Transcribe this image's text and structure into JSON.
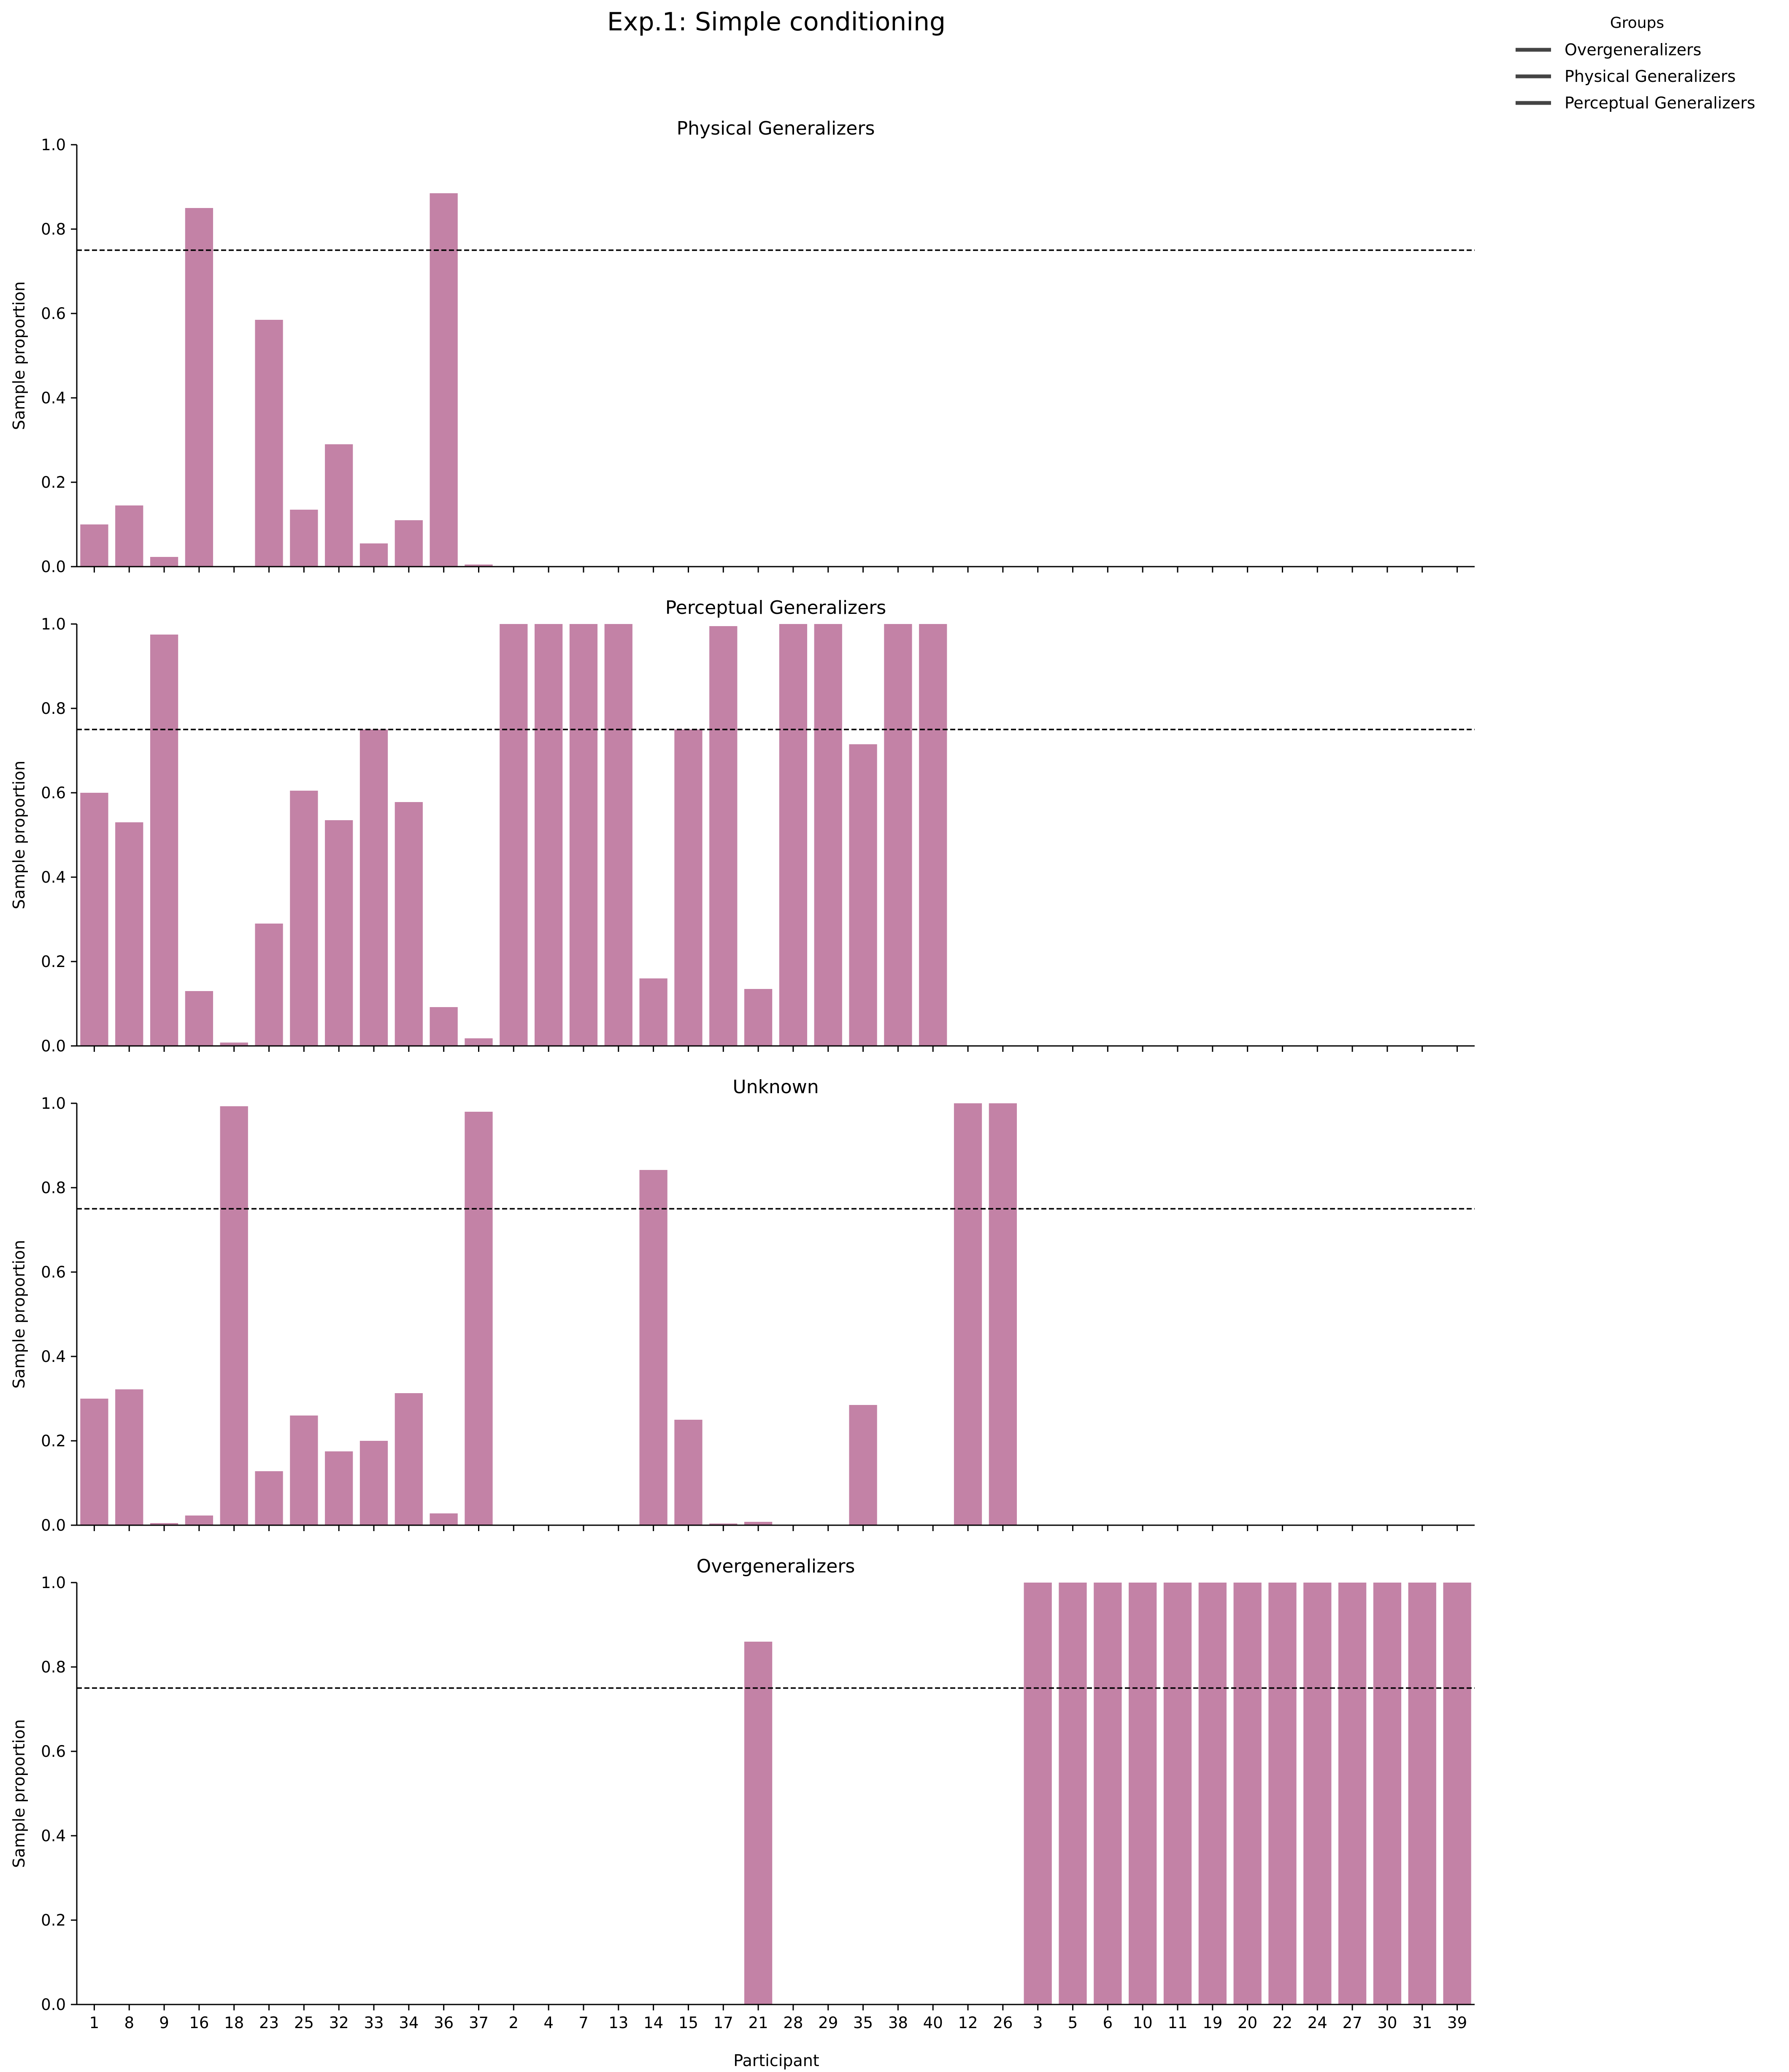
{
  "title": "Exp.1: Simple conditioning",
  "legend": {
    "title": "Groups",
    "placement": "top-right",
    "entries": [
      {
        "label": "Overgeneralizers",
        "color": "#444444"
      },
      {
        "label": "Physical Generalizers",
        "color": "#444444"
      },
      {
        "label": "Perceptual Generalizers",
        "color": "#444444"
      }
    ]
  },
  "colors": {
    "bar": "#c382a6",
    "threshold": "#000000",
    "axis": "#000000"
  },
  "chart_data": {
    "type": "bar",
    "xlabel": "Participant",
    "ylabel": "Sample proportion",
    "ylim": [
      0,
      1
    ],
    "yticks": [
      "0.0",
      "0.2",
      "0.4",
      "0.6",
      "0.8",
      "1.0"
    ],
    "threshold": 0.75,
    "categories": [
      "1",
      "8",
      "9",
      "16",
      "18",
      "23",
      "25",
      "32",
      "33",
      "34",
      "36",
      "37",
      "2",
      "4",
      "7",
      "13",
      "14",
      "15",
      "17",
      "21",
      "28",
      "29",
      "35",
      "38",
      "40",
      "12",
      "26",
      "3",
      "5",
      "6",
      "10",
      "11",
      "19",
      "20",
      "22",
      "24",
      "27",
      "30",
      "31",
      "39"
    ],
    "panels": [
      {
        "title": "Physical Generalizers",
        "values": [
          0.1,
          0.145,
          0.023,
          0.85,
          0,
          0.585,
          0.135,
          0.29,
          0.055,
          0.11,
          0.885,
          0.005,
          0,
          0,
          0,
          0,
          0,
          0,
          0,
          0,
          0,
          0,
          0,
          0,
          0,
          0,
          0,
          0,
          0,
          0,
          0,
          0,
          0,
          0,
          0,
          0,
          0,
          0,
          0,
          0
        ]
      },
      {
        "title": "Perceptual Generalizers",
        "values": [
          0.6,
          0.53,
          0.975,
          0.13,
          0.008,
          0.29,
          0.605,
          0.535,
          0.75,
          0.578,
          0.092,
          0.018,
          1.0,
          1.0,
          1.0,
          1.0,
          0.16,
          0.75,
          0.995,
          0.135,
          1.0,
          1.0,
          0.715,
          1.0,
          1.0,
          0,
          0,
          0,
          0,
          0,
          0,
          0,
          0,
          0,
          0,
          0,
          0,
          0,
          0,
          0
        ]
      },
      {
        "title": "Unknown",
        "values": [
          0.3,
          0.322,
          0.005,
          0.023,
          0.993,
          0.128,
          0.26,
          0.175,
          0.2,
          0.313,
          0.028,
          0.98,
          0,
          0,
          0,
          0,
          0.842,
          0.25,
          0.004,
          0.008,
          0,
          0,
          0.285,
          0,
          0,
          1.0,
          1.0,
          0,
          0,
          0,
          0,
          0,
          0,
          0,
          0,
          0,
          0,
          0,
          0,
          0
        ]
      },
      {
        "title": "Overgeneralizers",
        "values": [
          0,
          0,
          0,
          0,
          0,
          0,
          0,
          0,
          0,
          0,
          0,
          0,
          0,
          0,
          0,
          0,
          0,
          0,
          0,
          0.86,
          0,
          0,
          0,
          0,
          0,
          0,
          0,
          1.0,
          1.0,
          1.0,
          1.0,
          1.0,
          1.0,
          1.0,
          1.0,
          1.0,
          1.0,
          1.0,
          1.0,
          1.0
        ]
      }
    ]
  }
}
